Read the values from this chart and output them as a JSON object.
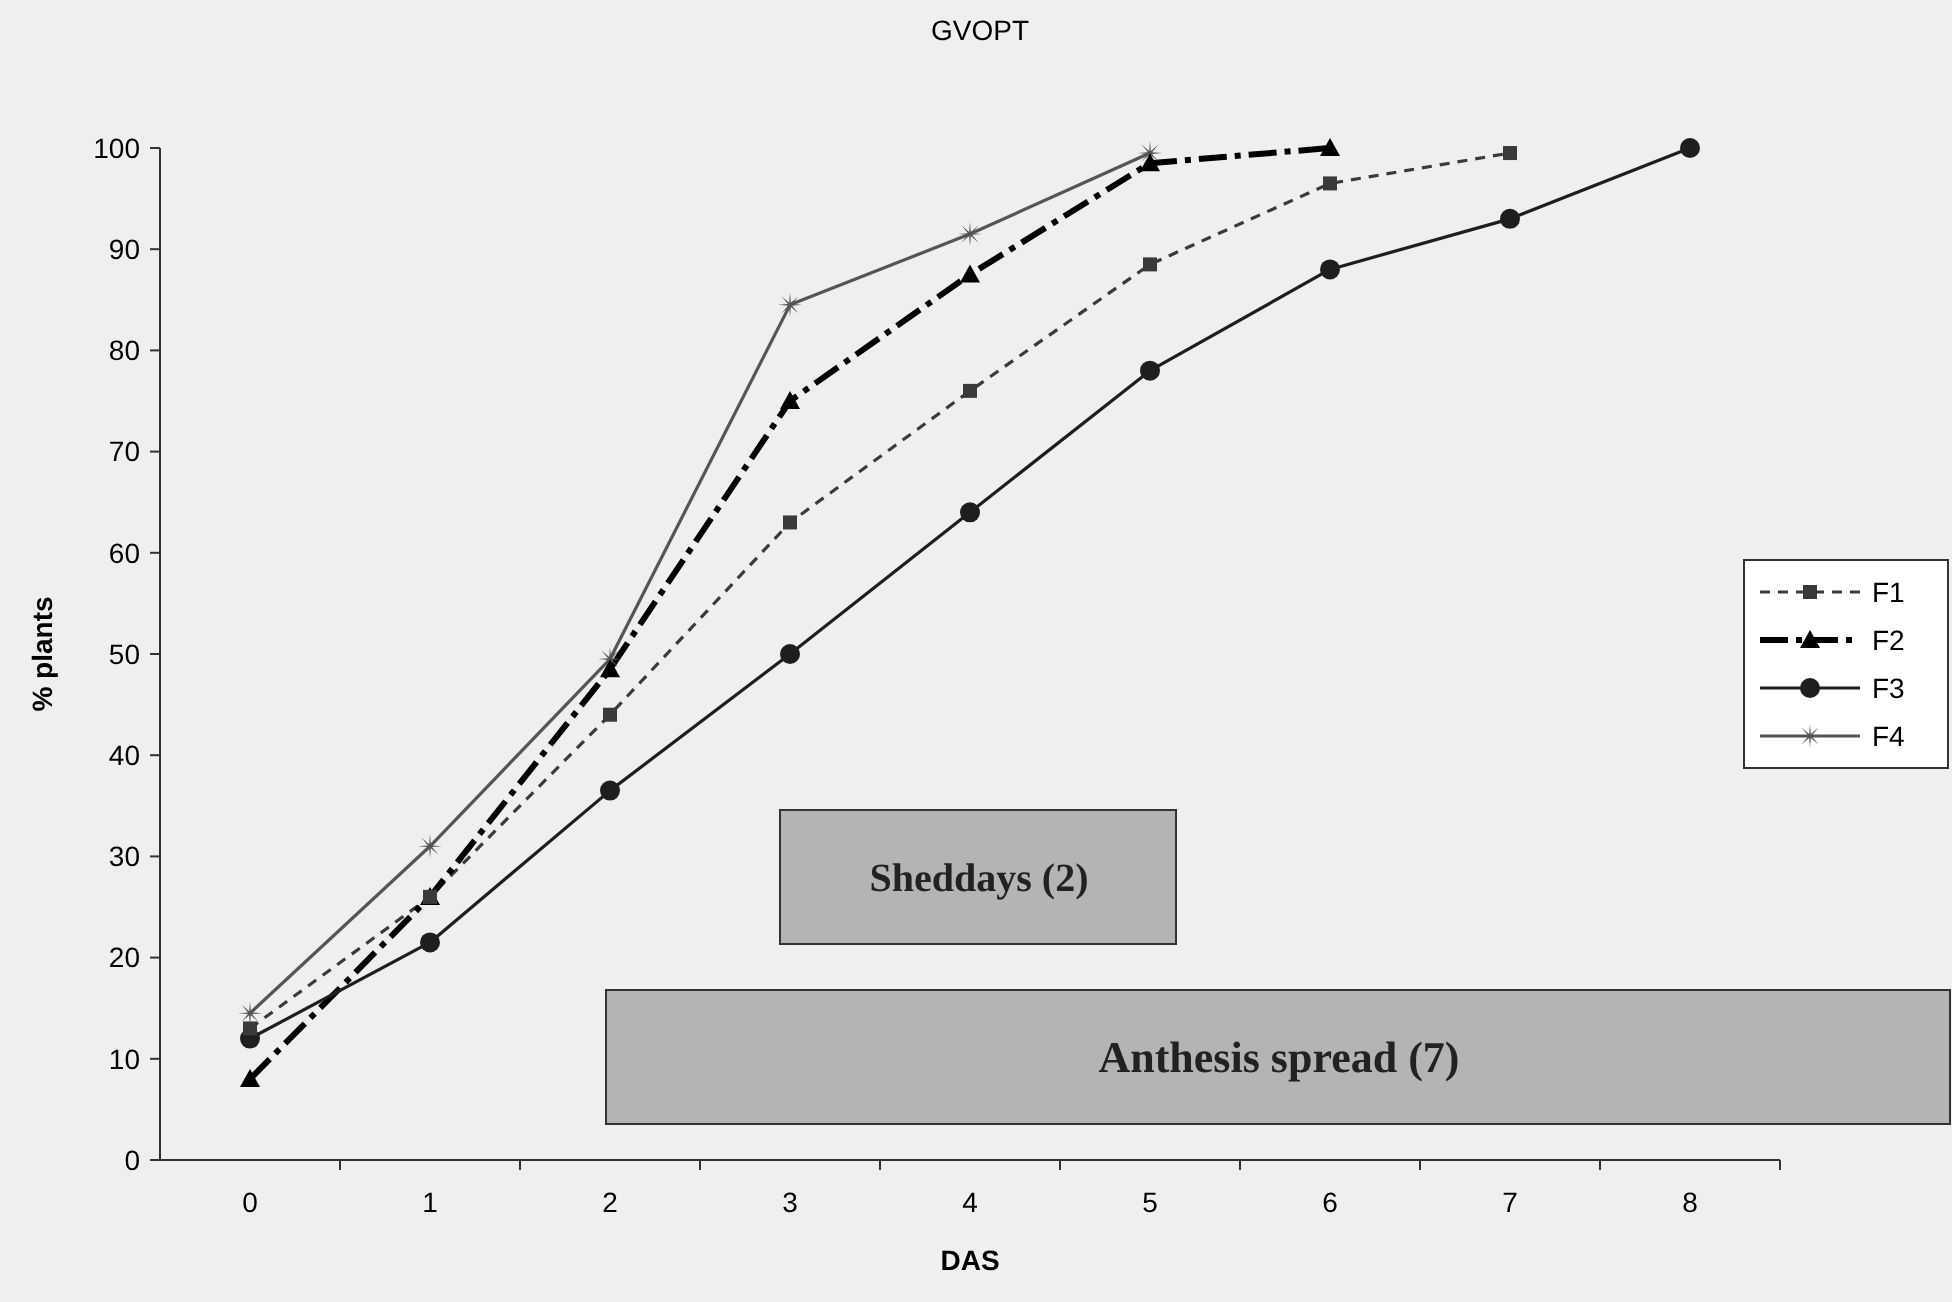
{
  "chart_data": {
    "type": "line",
    "title": "GVOPT",
    "xlabel": "DAS",
    "ylabel": "% plants",
    "categories": [
      "0",
      "1",
      "2",
      "3",
      "4",
      "5",
      "6",
      "7",
      "8"
    ],
    "ylim": [
      0,
      100
    ],
    "yticks": [
      0,
      10,
      20,
      30,
      40,
      50,
      60,
      70,
      80,
      90,
      100
    ],
    "grid": false,
    "legend": "right",
    "series": [
      {
        "name": "F1",
        "color": "#3a3a3a",
        "marker": "square",
        "line_style": "dashed",
        "values": [
          13,
          26,
          44,
          63,
          76,
          88.5,
          96.5,
          99.5,
          null
        ]
      },
      {
        "name": "F2",
        "color": "#000000",
        "marker": "triangle",
        "line_style": "dashed",
        "values": [
          8,
          26,
          48.5,
          75,
          87.5,
          98.5,
          100,
          null,
          null
        ]
      },
      {
        "name": "F3",
        "color": "#1e1e1e",
        "marker": "circle",
        "line_style": "solid",
        "values": [
          12,
          21.5,
          36.5,
          50,
          64,
          78,
          88,
          93,
          100
        ]
      },
      {
        "name": "F4",
        "color": "#555555",
        "marker": "star",
        "line_style": "solid",
        "values": [
          14.5,
          31,
          49.5,
          84.5,
          91.5,
          99.5,
          null,
          null,
          null
        ]
      }
    ],
    "annotations": [
      "Sheddays (2)",
      "Anthesis spread (7)"
    ]
  }
}
